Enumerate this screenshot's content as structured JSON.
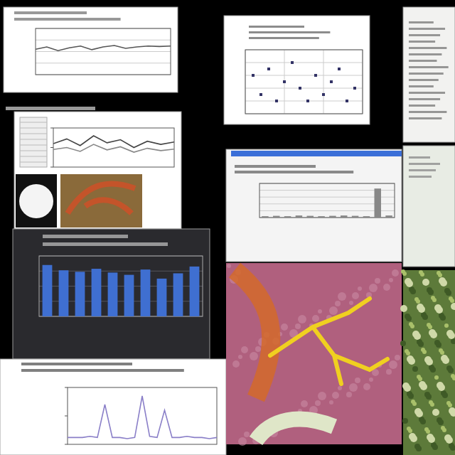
{
  "chart_data": [
    {
      "type": "line",
      "x": [
        0,
        1,
        2,
        3,
        4,
        5,
        6,
        7,
        8,
        9,
        10,
        11,
        12
      ],
      "values": [
        55,
        60,
        52,
        58,
        62,
        54,
        60,
        63,
        57,
        60,
        62,
        61,
        62
      ],
      "xlim": [
        0,
        12
      ],
      "ylim": [
        0,
        100
      ],
      "yticks": [
        0,
        25,
        50,
        75,
        100
      ],
      "color": "#555555",
      "grid": true,
      "tick_labels": false
    },
    {
      "type": "scatter",
      "x": [
        1,
        2,
        3,
        4,
        5,
        6,
        7,
        8,
        9,
        10,
        11,
        12,
        13,
        14
      ],
      "values": [
        6,
        3,
        7,
        2,
        5,
        8,
        4,
        2,
        6,
        3,
        5,
        7,
        2,
        4
      ],
      "xlim": [
        0,
        15
      ],
      "ylim": [
        0,
        10
      ],
      "xticks": [
        0,
        5,
        10,
        15
      ],
      "yticks": [
        0,
        2,
        4,
        6,
        8,
        10
      ],
      "color": "#333366",
      "grid": true,
      "tick_labels": false
    },
    {
      "type": "line",
      "x": [
        0,
        1,
        2,
        3,
        4,
        5,
        6,
        7,
        8,
        9
      ],
      "series": [
        {
          "values": [
            60,
            72,
            55,
            80,
            62,
            70,
            50,
            66,
            58,
            64
          ],
          "color": "#444444"
        },
        {
          "values": [
            45,
            50,
            40,
            58,
            44,
            52,
            38,
            48,
            42,
            46
          ],
          "color": "#888888"
        }
      ],
      "xlim": [
        0,
        9
      ],
      "ylim": [
        0,
        100
      ],
      "yticks": [
        0,
        50,
        100
      ],
      "grid": false,
      "tick_labels": false
    },
    {
      "type": "bar",
      "categories": [
        null,
        null,
        null,
        null,
        null,
        null,
        null,
        null,
        null,
        null,
        null,
        null
      ],
      "values": [
        4,
        5,
        4,
        6,
        5,
        4,
        5,
        6,
        5,
        4,
        85,
        6
      ],
      "ylim": [
        0,
        100
      ],
      "yticks": [
        0,
        20,
        40,
        60,
        80,
        100
      ],
      "color": "#888888",
      "grid": true,
      "tick_labels": false
    },
    {
      "type": "bar",
      "categories": [
        null,
        null,
        null,
        null,
        null,
        null,
        null,
        null,
        null,
        null
      ],
      "values": [
        68,
        61,
        59,
        63,
        58,
        55,
        62,
        50,
        57,
        66
      ],
      "ylim": [
        0,
        80
      ],
      "yticks": [
        0,
        20,
        40,
        60,
        80
      ],
      "color": "#3f6fd1",
      "grid": true,
      "tick_labels": false
    },
    {
      "type": "line",
      "x": [
        0,
        1,
        2,
        3,
        4,
        5,
        6,
        7,
        8,
        9,
        10,
        11,
        12,
        13,
        14,
        15,
        16,
        17,
        18,
        19,
        20
      ],
      "values": [
        12,
        12,
        12,
        14,
        12,
        70,
        12,
        12,
        10,
        12,
        85,
        14,
        12,
        60,
        12,
        12,
        14,
        12,
        12,
        10,
        12
      ],
      "xlim": [
        0,
        20
      ],
      "ylim": [
        0,
        100
      ],
      "yticks": [
        0,
        50,
        100
      ],
      "color": "#8a7fc8",
      "grid": false,
      "tick_labels": false
    }
  ]
}
